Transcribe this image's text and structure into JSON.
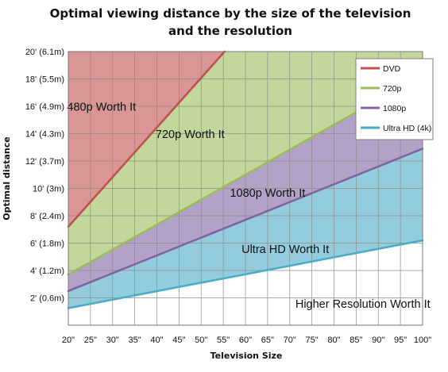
{
  "chart_data": {
    "type": "area",
    "title_lines": [
      "Optimal viewing distance by the size of the television",
      "and the resolution"
    ],
    "xlabel": "Television  Size",
    "ylabel": "Optimal distance",
    "x": [
      20,
      25,
      30,
      35,
      40,
      45,
      50,
      55,
      60,
      65,
      70,
      75,
      80,
      85,
      90,
      95,
      100
    ],
    "x_tick_labels": [
      "20\"",
      "25\"",
      "30\"",
      "35\"",
      "40\"",
      "45\"",
      "50\"",
      "55\"",
      "60\"",
      "65\"",
      "70\"",
      "75\"",
      "80\"",
      "85\"",
      "90\"",
      "95\"",
      "100\""
    ],
    "xlim": [
      20,
      100
    ],
    "y_ticks": [
      2,
      4,
      6,
      8,
      10,
      12,
      14,
      16,
      18,
      20
    ],
    "y_tick_labels": [
      "2' (0.6m)",
      "4' (1.2m)",
      "6' (1.8m)",
      "8' (2.4m)",
      "10' (3m)",
      "12' (3.7m)",
      "14' (4.3m)",
      "16' (4.9m)",
      "18' (5.5m)",
      "20' (6.1m)"
    ],
    "ylim": [
      0,
      20
    ],
    "grid": true,
    "legend_position": "top-right",
    "series": [
      {
        "name": "DVD",
        "color": "#c0504d",
        "line": [
          [
            20,
            7.2
          ],
          [
            55.3,
            20
          ]
        ]
      },
      {
        "name": "720p",
        "color": "#9bbb59",
        "line": [
          [
            20,
            3.7
          ],
          [
            100,
            18.3
          ]
        ]
      },
      {
        "name": "1080p",
        "color": "#8064a2",
        "line": [
          [
            20,
            2.5
          ],
          [
            100,
            12.9
          ]
        ]
      },
      {
        "name": "Ultra HD (4k)",
        "color": "#4bacc6",
        "line": [
          [
            20,
            1.25
          ],
          [
            100,
            6.2
          ]
        ]
      }
    ],
    "regions": [
      {
        "label": "480p Worth It",
        "fill": "#d99694",
        "anchor": [
          27.5,
          15.9
        ]
      },
      {
        "label": "720p Worth It",
        "fill": "#c3d69b",
        "anchor": [
          47.5,
          13.9
        ]
      },
      {
        "label": "1080p Worth It",
        "fill": "#b3a2c7",
        "anchor": [
          65.0,
          9.6
        ]
      },
      {
        "label": "Ultra HD Worth It",
        "fill": "#93cddd",
        "anchor": [
          69.0,
          5.5
        ]
      },
      {
        "label": "Higher Resolution Worth It",
        "fill": "#ffffff",
        "anchor": [
          86.5,
          1.5
        ]
      }
    ]
  }
}
